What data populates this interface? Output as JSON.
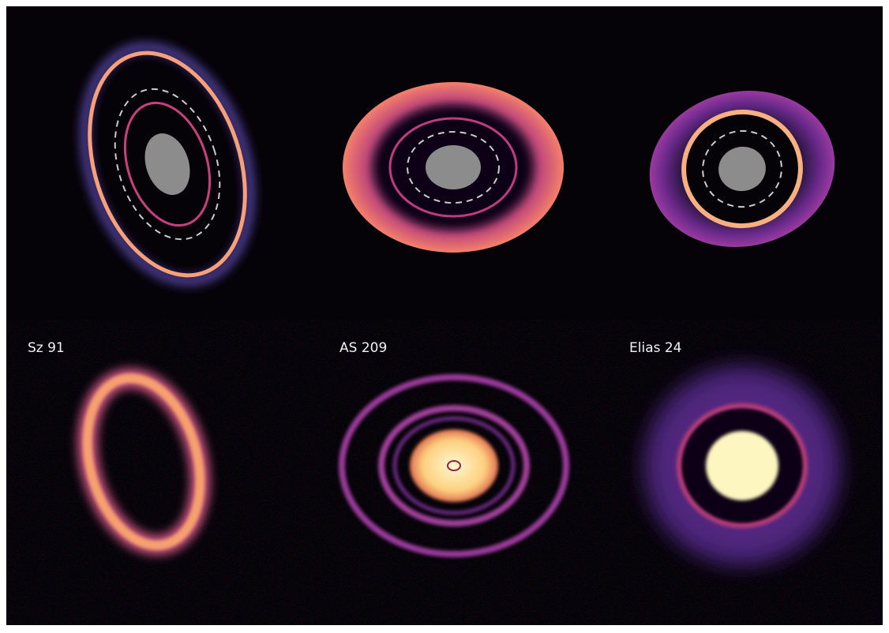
{
  "panels": [
    {
      "label": "Sz 91"
    },
    {
      "label": "AS 209"
    },
    {
      "label": "Elias 24"
    }
  ]
}
